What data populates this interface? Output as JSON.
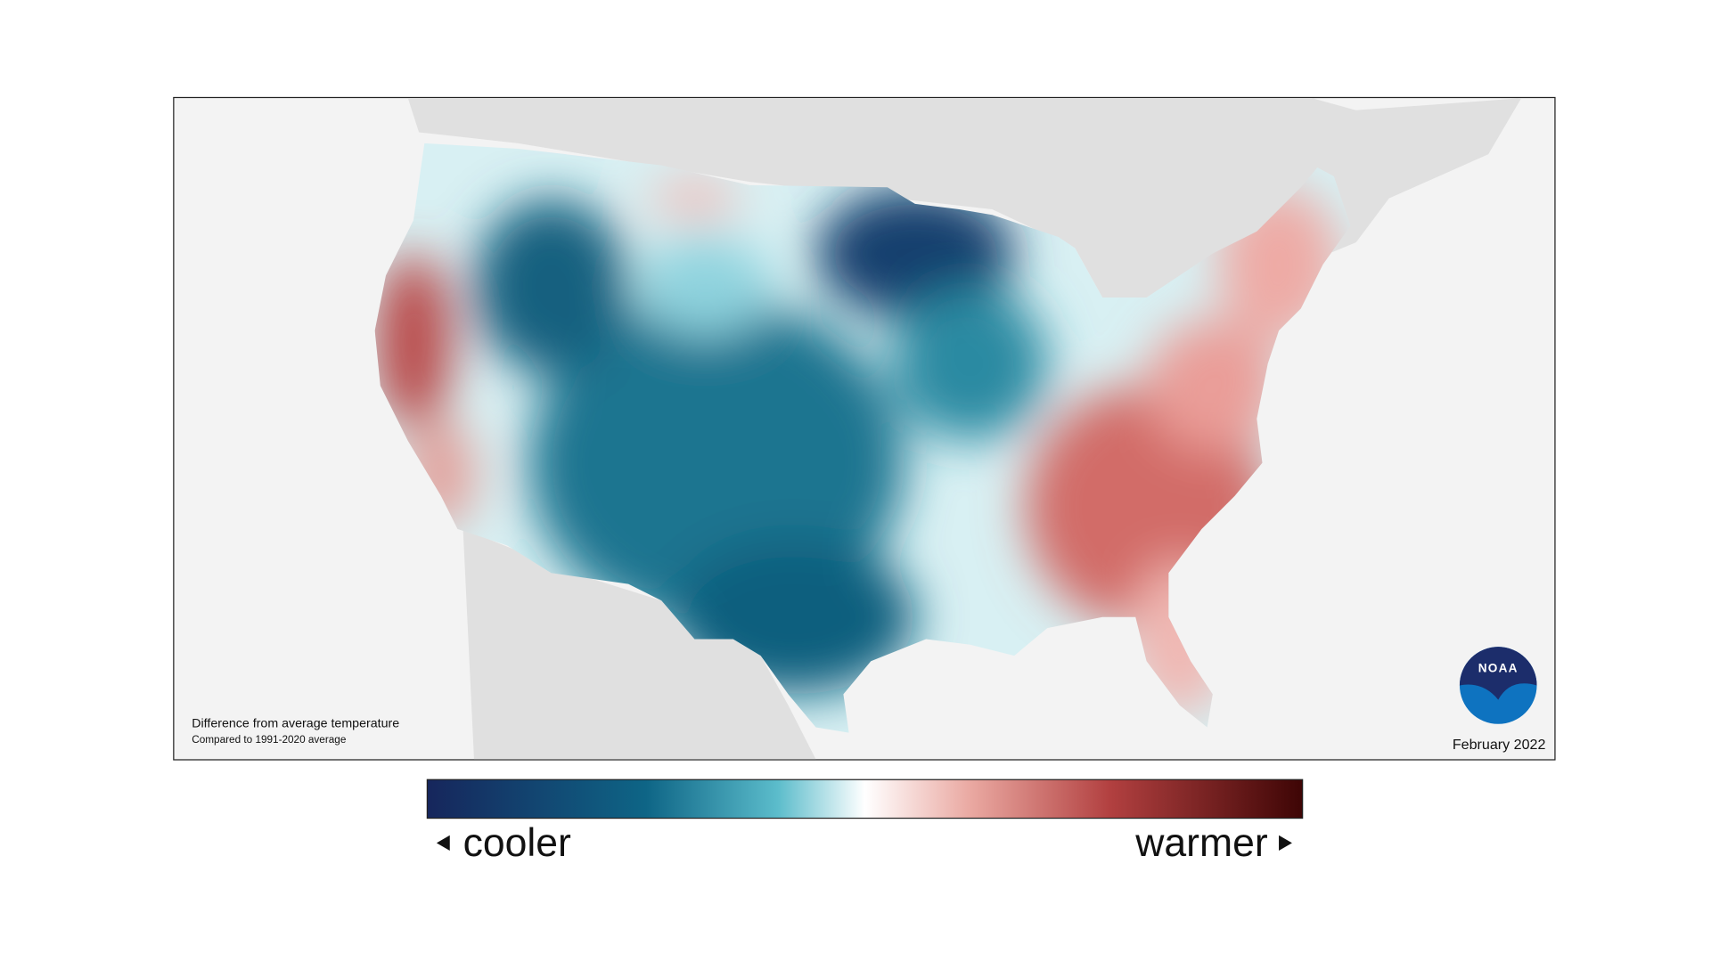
{
  "map": {
    "caption_title": "Difference from average temperature",
    "caption_subtitle": "Compared to 1991-2020 average",
    "date": "February 2022",
    "logo_text": "NOAA"
  },
  "legend": {
    "low_label": "cooler",
    "high_label": "warmer"
  }
}
